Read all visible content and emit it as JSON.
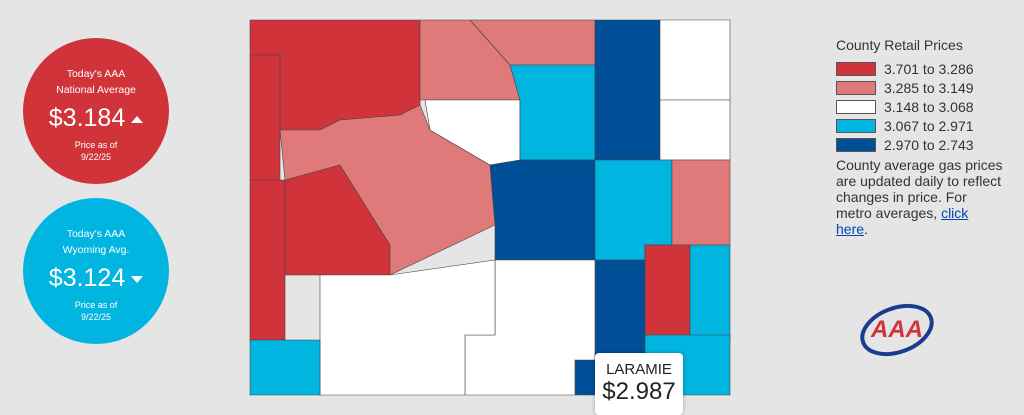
{
  "national": {
    "line1": "Today's AAA",
    "line2": "National Average",
    "price": "$3.184",
    "date_label": "Price as of",
    "date": "9/22/25"
  },
  "state": {
    "line1": "Today's AAA",
    "line2": "Wyoming Avg.",
    "price": "$3.124",
    "date_label": "Price as of",
    "date": "9/22/25"
  },
  "legend": {
    "title": "County Retail Prices",
    "items": [
      {
        "label": "3.701 to 3.286",
        "color": "#d0343a"
      },
      {
        "label": "3.285 to 3.149",
        "color": "#e07a7a"
      },
      {
        "label": "3.148 to 3.068",
        "color": "#ffffff"
      },
      {
        "label": "3.067 to 2.971",
        "color": "#00b5df"
      },
      {
        "label": "2.970 to 2.743",
        "color": "#004f96"
      }
    ]
  },
  "note": {
    "text": "County average gas prices are updated daily to reflect changes in price. For metro averages, ",
    "link": "click here",
    "end": "."
  },
  "logo": "AAA",
  "tooltip": {
    "county": "LARAMIE",
    "price": "$2.987"
  }
}
